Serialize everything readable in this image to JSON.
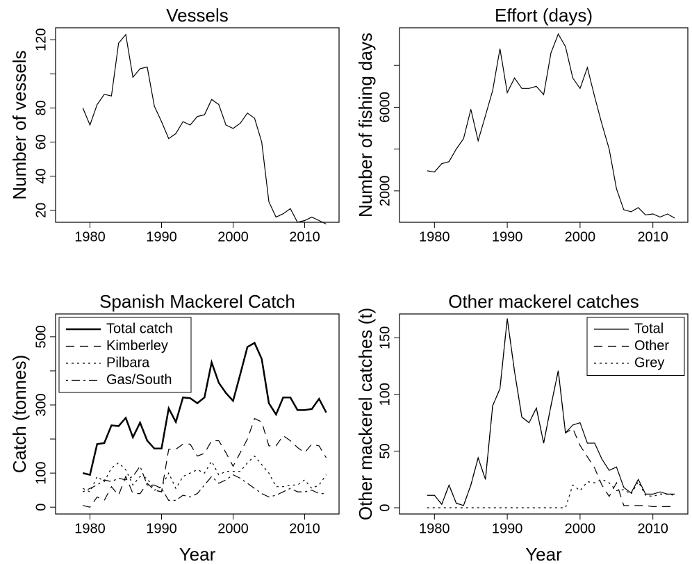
{
  "chart_data": [
    {
      "type": "line",
      "title": "Vessels",
      "ylabel": "Number of vessels",
      "color": "#000000",
      "x": [
        1979,
        1980,
        1981,
        1982,
        1983,
        1984,
        1985,
        1986,
        1987,
        1988,
        1989,
        1990,
        1991,
        1992,
        1993,
        1994,
        1995,
        1996,
        1997,
        1998,
        1999,
        2000,
        2001,
        2002,
        2003,
        2004,
        2005,
        2006,
        2007,
        2008,
        2009,
        2010,
        2011,
        2012,
        2013
      ],
      "values": [
        80,
        70,
        82,
        88,
        87,
        118,
        123,
        98,
        103,
        104,
        81,
        72,
        62,
        65,
        72,
        70,
        75,
        76,
        85,
        82,
        70,
        68,
        71,
        77,
        74,
        60,
        25,
        16,
        18,
        21,
        13,
        14,
        16,
        14,
        12
      ],
      "xlim": [
        1975.2,
        2014.8
      ],
      "xticks": [
        1980,
        1990,
        2000,
        2010
      ],
      "ylim": [
        13,
        127
      ],
      "yticks": [
        20,
        40,
        60,
        80,
        120
      ],
      "ytick_marks": [
        100
      ]
    },
    {
      "type": "line",
      "title": "Effort (days)",
      "ylabel": "Number of fishing days",
      "color": "#000000",
      "x": [
        1979,
        1980,
        1981,
        1982,
        1983,
        1984,
        1985,
        1986,
        1987,
        1988,
        1989,
        1990,
        1991,
        1992,
        1993,
        1994,
        1995,
        1996,
        1997,
        1998,
        1999,
        2000,
        2001,
        2002,
        2003,
        2004,
        2005,
        2006,
        2007,
        2008,
        2009,
        2010,
        2011,
        2012,
        2013
      ],
      "values": [
        2960,
        2900,
        3300,
        3400,
        4000,
        4500,
        5900,
        4400,
        5600,
        6800,
        8800,
        6700,
        7400,
        6900,
        6900,
        7000,
        6600,
        8600,
        9500,
        8900,
        7400,
        6900,
        7900,
        6500,
        5200,
        4000,
        2100,
        1100,
        1000,
        1200,
        850,
        900,
        750,
        900,
        700
      ],
      "xlim": [
        1975.2,
        2014.8
      ],
      "xticks": [
        1980,
        1990,
        2000,
        2010
      ],
      "ylim": [
        500,
        9800
      ],
      "yticks": [
        2000,
        6000
      ],
      "ytick_marks": [
        4000,
        8000
      ]
    },
    {
      "type": "line",
      "title": "Spanish Mackerel Catch",
      "xlabel": "Year",
      "ylabel": "Catch (tonnes)",
      "legend": "top-left",
      "x": [
        1979,
        1980,
        1981,
        1982,
        1983,
        1984,
        1985,
        1986,
        1987,
        1988,
        1989,
        1990,
        1991,
        1992,
        1993,
        1994,
        1995,
        1996,
        1997,
        1998,
        1999,
        2000,
        2001,
        2002,
        2003,
        2004,
        2005,
        2006,
        2007,
        2008,
        2009,
        2010,
        2011,
        2012,
        2013
      ],
      "series": [
        {
          "name": "Total catch",
          "color": "#000000",
          "line_style": "solid",
          "line_width": 2.5,
          "values": [
            100,
            95,
            185,
            188,
            240,
            238,
            262,
            205,
            248,
            195,
            172,
            172,
            290,
            250,
            322,
            320,
            305,
            322,
            425,
            365,
            335,
            312,
            390,
            470,
            482,
            435,
            305,
            272,
            322,
            322,
            285,
            285,
            288,
            318,
            278
          ]
        },
        {
          "name": "Kimberley",
          "color": "#000000",
          "line_style": "dashed",
          "line_width": 1.2,
          "values": [
            5,
            0,
            30,
            20,
            60,
            35,
            90,
            40,
            40,
            70,
            50,
            45,
            170,
            170,
            185,
            185,
            150,
            158,
            195,
            195,
            160,
            120,
            160,
            200,
            260,
            250,
            180,
            180,
            210,
            195,
            175,
            160,
            185,
            180,
            145
          ]
        },
        {
          "name": "Pilbara",
          "color": "#000000",
          "line_style": "dotted",
          "line_width": 1.2,
          "values": [
            55,
            45,
            90,
            75,
            115,
            130,
            110,
            65,
            90,
            85,
            50,
            60,
            100,
            55,
            90,
            100,
            110,
            100,
            135,
            95,
            105,
            105,
            105,
            130,
            150,
            125,
            100,
            60,
            60,
            65,
            65,
            80,
            55,
            65,
            95
          ]
        },
        {
          "name": "Gas/South",
          "color": "#000000",
          "line_style": "dotdash",
          "line_width": 1.2,
          "values": [
            45,
            55,
            65,
            80,
            75,
            85,
            80,
            90,
            120,
            65,
            65,
            55,
            20,
            20,
            35,
            30,
            40,
            65,
            90,
            70,
            80,
            95,
            85,
            70,
            55,
            40,
            30,
            35,
            45,
            55,
            45,
            45,
            50,
            40,
            40
          ]
        }
      ],
      "xlim": [
        1975.2,
        2014.8
      ],
      "xticks": [
        1980,
        1990,
        2000,
        2010
      ],
      "ylim": [
        -20,
        567
      ],
      "yticks": [
        0,
        100,
        300,
        500
      ],
      "ytick_marks": [
        200,
        400
      ]
    },
    {
      "type": "line",
      "title": "Other mackerel catches",
      "xlabel": "Year",
      "ylabel": "Other mackerel catches (t)",
      "legend": "top-right",
      "x": [
        1979,
        1980,
        1981,
        1982,
        1983,
        1984,
        1985,
        1986,
        1987,
        1988,
        1989,
        1990,
        1991,
        1992,
        1993,
        1994,
        1995,
        1996,
        1997,
        1998,
        1999,
        2000,
        2001,
        2002,
        2003,
        2004,
        2005,
        2006,
        2007,
        2008,
        2009,
        2010,
        2011,
        2012,
        2013
      ],
      "series": [
        {
          "name": "Total",
          "color": "#000000",
          "line_style": "solid",
          "line_width": 1.2,
          "values": [
            11,
            11,
            3,
            20,
            4,
            2,
            20,
            44,
            25,
            90,
            105,
            167,
            120,
            80,
            75,
            88,
            57,
            90,
            121,
            66,
            73,
            75,
            57,
            57,
            43,
            33,
            36,
            18,
            13,
            25,
            12,
            12,
            14,
            12,
            12
          ]
        },
        {
          "name": "Other",
          "color": "#000000",
          "line_style": "dashed",
          "line_width": 1.2,
          "values": [
            11,
            11,
            3,
            20,
            4,
            2,
            20,
            44,
            25,
            90,
            105,
            167,
            120,
            80,
            75,
            88,
            57,
            90,
            121,
            66,
            70,
            55,
            45,
            35,
            20,
            10,
            22,
            2,
            2,
            2,
            2,
            1,
            1,
            1,
            1
          ]
        },
        {
          "name": "Grey",
          "color": "#000000",
          "line_style": "dotted",
          "line_width": 1.2,
          "values": [
            0,
            0,
            0,
            0,
            0,
            0,
            0,
            0,
            0,
            0,
            0,
            0,
            0,
            0,
            0,
            0,
            0,
            0,
            0,
            0,
            20,
            15,
            23,
            22,
            25,
            22,
            15,
            16,
            12,
            23,
            11,
            10,
            12,
            12,
            11
          ]
        }
      ],
      "xlim": [
        1975.2,
        2014.8
      ],
      "xticks": [
        1980,
        1990,
        2000,
        2010
      ],
      "ylim": [
        -5.5,
        171
      ],
      "yticks": [
        0,
        50,
        100,
        150
      ]
    }
  ]
}
